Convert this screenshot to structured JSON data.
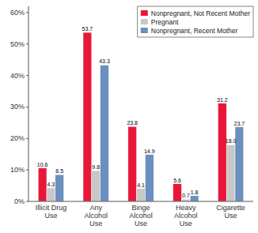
{
  "chart_data": {
    "type": "bar",
    "categories": [
      "Illicit Drug\nUse",
      "Any\nAlcohol\nUse",
      "Binge\nAlcohol\nUse",
      "Heavy\nAlcohol\nUse",
      "Cigarette\nUse"
    ],
    "series": [
      {
        "name": "Nonpregnant, Not Recent Mother",
        "color": "#E8173A",
        "values": [
          10.6,
          53.7,
          23.8,
          5.6,
          31.2
        ]
      },
      {
        "name": "Pregnant",
        "color": "#C8C8C8",
        "values": [
          4.3,
          9.8,
          4.1,
          0.7,
          18.0
        ],
        "value_labels": [
          "4.3",
          "9.8",
          "4.1",
          "0.7",
          "18.0"
        ]
      },
      {
        "name": "Nonpregnant, Recent Mother",
        "color": "#6B8FBF",
        "values": [
          8.5,
          43.3,
          14.9,
          1.8,
          23.7
        ]
      }
    ],
    "ylim": [
      0,
      62
    ],
    "yticks": [
      {
        "value": 0,
        "label": "0%"
      },
      {
        "value": 10,
        "label": "10%"
      },
      {
        "value": 20,
        "label": "20%"
      },
      {
        "value": 30,
        "label": "30%"
      },
      {
        "value": 40,
        "label": "40%"
      },
      {
        "value": 50,
        "label": "50%"
      },
      {
        "value": 60,
        "label": "60%"
      }
    ],
    "data_labels": true,
    "legend": "upper right",
    "grid": false
  }
}
